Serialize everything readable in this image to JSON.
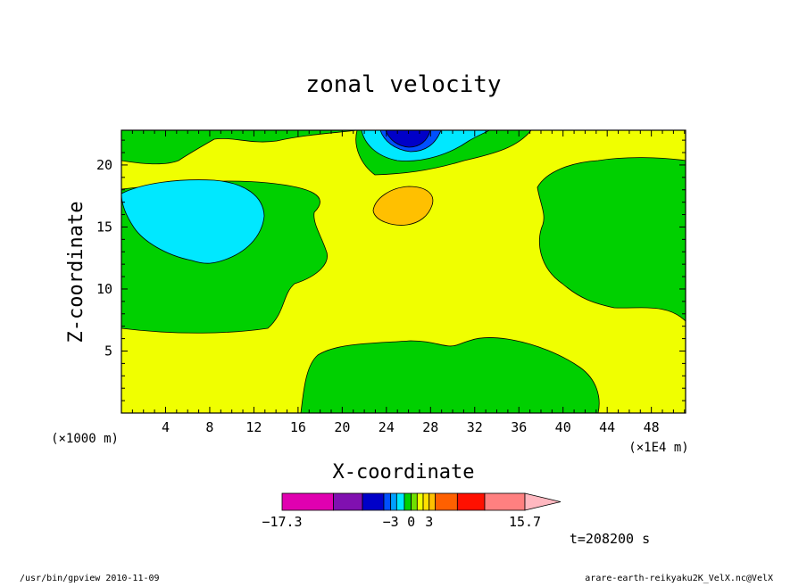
{
  "chart_data": {
    "type": "contour",
    "title": "zonal velocity",
    "xlabel": "X-coordinate",
    "ylabel": "Z-coordinate",
    "x_unit_left": "(×1000 m)",
    "x_unit_right": "(×1E4 m)",
    "xlim": [
      0,
      51.1
    ],
    "ylim": [
      0,
      22.8
    ],
    "x_ticks": [
      4,
      8,
      12,
      16,
      20,
      24,
      28,
      32,
      36,
      40,
      44,
      48
    ],
    "y_ticks": [
      5,
      10,
      15,
      20
    ],
    "time_label": "t=208200 s",
    "colorbar": {
      "min_label": "−17.3",
      "max_label": "15.7",
      "labels": [
        {
          "text": "−3",
          "value": -3
        },
        {
          "text": "0",
          "value": 0
        },
        {
          "text": "3",
          "value": 3
        }
      ],
      "levels": [
        -17.3,
        -12,
        -8,
        -5,
        -3,
        -2,
        -1,
        0,
        1,
        2,
        3,
        5,
        8,
        12,
        15.7
      ],
      "colors": [
        "#e000b0",
        "#8010b0",
        "#0000c8",
        "#0050ff",
        "#00a0ff",
        "#00e8ff",
        "#00d000",
        "#70e000",
        "#f0ff00",
        "#ffe000",
        "#ffc000",
        "#ff6000",
        "#ff1000",
        "#ff8080"
      ],
      "extend_color": "#ffb8c0"
    },
    "regions": [
      {
        "level": "0 to 1",
        "color": "#f0ff00",
        "role": "background"
      },
      {
        "level": "-1 to 0",
        "color": "#00d000",
        "name": "upper-left band"
      },
      {
        "level": "-1 to 0",
        "color": "#00d000",
        "name": "top-center band"
      },
      {
        "level": "-1 to 0",
        "color": "#00d000",
        "name": "right lobe"
      },
      {
        "level": "-1 to 0",
        "color": "#00d000",
        "name": "bottom-center mound"
      },
      {
        "level": "-3 to -1",
        "color": "#00e8ff",
        "name": "left cyan cell"
      },
      {
        "level": "-3 to -1",
        "color": "#00e8ff",
        "name": "top cyan cell"
      },
      {
        "level": "-5 to -3",
        "color": "#0050ff",
        "name": "top blue cell"
      },
      {
        "level": "-8 to -5",
        "color": "#0000c8",
        "name": "top dark-blue core"
      },
      {
        "level": "1 to 3",
        "color": "#ffc000",
        "name": "central orange cell"
      }
    ]
  },
  "footer": {
    "left": "/usr/bin/gpview   2010-11-09",
    "right": "arare-earth-reikyaku2K_VelX.nc@VelX"
  }
}
